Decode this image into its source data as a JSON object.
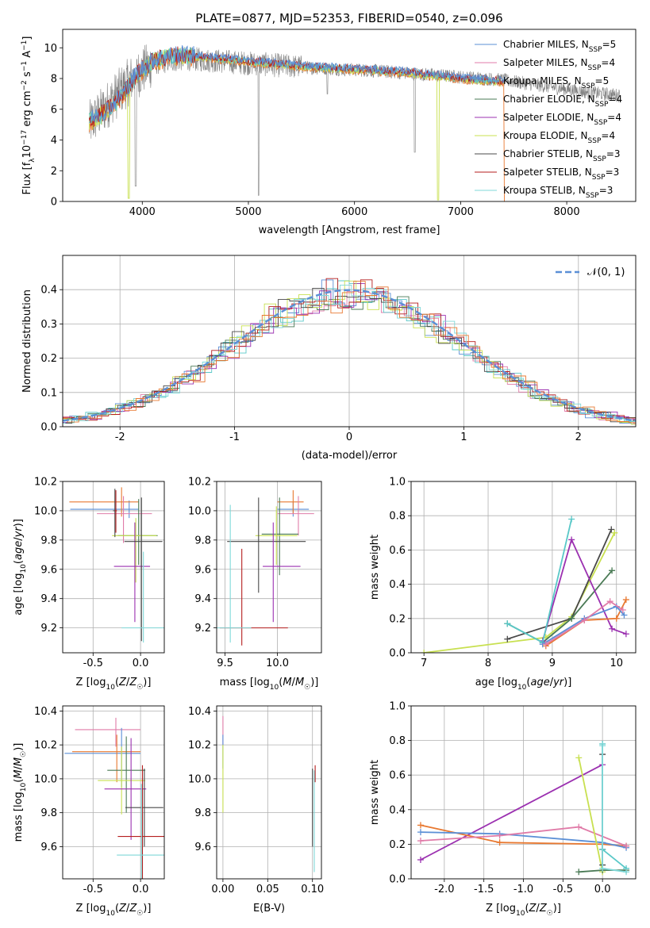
{
  "figure": {
    "title": "PLATE=0877, MJD=52353, FIBERID=0540, z=0.096"
  },
  "colors": {
    "Chabrier MILES": "#5b8fd6",
    "Salpeter MILES": "#e07ba8",
    "Kroupa MILES": "#5ac8c8",
    "Chabrier ELODIE": "#4a7a55",
    "Salpeter ELODIE": "#9b30b0",
    "Kroupa ELODIE": "#c8e050",
    "Chabrier STELIB": "#484848",
    "Salpeter STELIB": "#b51e1e",
    "Kroupa STELIB": "#7fd8d8",
    "orange": "#e87830",
    "gray_spectrum": "#808080",
    "normal_curve": "#5b8fd6"
  },
  "chart_data": [
    {
      "id": "spectrum",
      "type": "line",
      "xlabel": "wavelength [Angstrom, rest frame]",
      "ylabel": "Flux [f_λ10^-17 erg cm^-2 s^-1 A^-1]",
      "xlim": [
        3250,
        8650
      ],
      "ylim": [
        0,
        11.2
      ],
      "xticks": [
        4000,
        5000,
        6000,
        7000,
        8000
      ],
      "yticks": [
        0,
        2,
        4,
        6,
        8,
        10
      ],
      "grid": false,
      "legend_position": "upper-right",
      "legend": [
        {
          "label": "Chabrier MILES, N",
          "sub": "SSP",
          "suffix": "=5",
          "color_key": "Chabrier MILES"
        },
        {
          "label": "Salpeter MILES, N",
          "sub": "SSP",
          "suffix": "=4",
          "color_key": "Salpeter MILES"
        },
        {
          "label": "Kroupa MILES, N",
          "sub": "SSP",
          "suffix": "=5",
          "color_key": "Kroupa MILES"
        },
        {
          "label": "Chabrier ELODIE, N",
          "sub": "SSP",
          "suffix": "=4",
          "color_key": "Chabrier ELODIE"
        },
        {
          "label": "Salpeter ELODIE, N",
          "sub": "SSP",
          "suffix": "=4",
          "color_key": "Salpeter ELODIE"
        },
        {
          "label": "Kroupa ELODIE, N",
          "sub": "SSP",
          "suffix": "=4",
          "color_key": "Kroupa ELODIE"
        },
        {
          "label": "Chabrier STELIB, N",
          "sub": "SSP",
          "suffix": "=3",
          "color_key": "Chabrier STELIB"
        },
        {
          "label": "Salpeter STELIB, N",
          "sub": "SSP",
          "suffix": "=3",
          "color_key": "Salpeter STELIB"
        },
        {
          "label": "Kroupa STELIB, N",
          "sub": "SSP",
          "suffix": "=3",
          "color_key": "Kroupa STELIB"
        }
      ],
      "model_continuum": [
        [
          3500,
          5.2
        ],
        [
          3650,
          5.8
        ],
        [
          3800,
          6.8
        ],
        [
          3950,
          8.3
        ],
        [
          4100,
          9.1
        ],
        [
          4300,
          9.5
        ],
        [
          4600,
          9.4
        ],
        [
          5000,
          9.1
        ],
        [
          5500,
          8.8
        ],
        [
          6000,
          8.6
        ],
        [
          6500,
          8.4
        ],
        [
          7000,
          8.0
        ],
        [
          7400,
          7.8
        ]
      ],
      "observed_continuum": [
        [
          3500,
          5.0
        ],
        [
          3700,
          6.5
        ],
        [
          3900,
          8.0
        ],
        [
          4100,
          9.0
        ],
        [
          4400,
          9.3
        ],
        [
          5000,
          9.0
        ],
        [
          5600,
          8.7
        ],
        [
          6200,
          8.5
        ],
        [
          6800,
          8.2
        ],
        [
          7400,
          7.9
        ],
        [
          7800,
          7.5
        ],
        [
          8200,
          7.1
        ],
        [
          8500,
          6.9
        ]
      ]
    },
    {
      "id": "residuals",
      "type": "histogram",
      "xlabel": "(data-model)/error",
      "ylabel": "Normed distribution",
      "xlim": [
        -2.5,
        2.5
      ],
      "ylim": [
        0,
        0.5
      ],
      "xticks": [
        -2,
        -1,
        0,
        1,
        2
      ],
      "yticks": [
        0.0,
        0.1,
        0.2,
        0.3,
        0.4
      ],
      "grid": true,
      "legend_position": "upper-right",
      "legend": [
        {
          "label": "𝒩(0, 1)",
          "color_key": "normal_curve",
          "style": "dashed"
        }
      ],
      "bin_width": 0.1,
      "curve": "N(0,1)"
    },
    {
      "id": "age_vs_Z",
      "type": "errorbar",
      "xlabel": "Z [log10(Z/Z☉)]",
      "ylabel": "age  [log10(age/yr)]",
      "xlim": [
        -0.82,
        0.25
      ],
      "ylim": [
        9.03,
        10.2
      ],
      "xticks": [
        -0.5,
        0.0
      ],
      "yticks": [
        9.2,
        9.4,
        9.6,
        9.8,
        10.0,
        10.2
      ],
      "grid": true,
      "points": [
        {
          "series": "Chabrier MILES",
          "x": -0.12,
          "xerr": [
            0.62,
            0.1
          ],
          "y": 10.01,
          "yerr": [
            0.06,
            0.06
          ]
        },
        {
          "series": "orange",
          "x": -0.2,
          "xerr": [
            0.55,
            0.18
          ],
          "y": 10.06,
          "yerr": [
            0.1,
            0.1
          ]
        },
        {
          "series": "Salpeter MILES",
          "x": -0.18,
          "xerr": [
            0.28,
            0.3
          ],
          "y": 9.98,
          "yerr": [
            0.2,
            0.12
          ]
        },
        {
          "series": "Chabrier ELODIE",
          "x": -0.02,
          "xerr": [
            0.22,
            0.2
          ],
          "y": 9.83,
          "yerr": [
            0.2,
            0.25
          ]
        },
        {
          "series": "Kroupa ELODIE",
          "x": -0.05,
          "xerr": [
            0.25,
            0.22
          ],
          "y": 9.83,
          "yerr": [
            0.32,
            0.12
          ]
        },
        {
          "series": "Salpeter ELODIE",
          "x": -0.06,
          "xerr": [
            0.22,
            0.16
          ],
          "y": 9.62,
          "yerr": [
            0.38,
            0.3
          ]
        },
        {
          "series": "Chabrier STELIB",
          "x": 0.01,
          "xerr": [
            0.18,
            0.22
          ],
          "y": 9.79,
          "yerr": [
            0.68,
            0.3
          ]
        },
        {
          "series": "Kroupa STELIB",
          "x": 0.03,
          "xerr": [
            0.23,
            0.26
          ],
          "y": 9.2,
          "yerr": [
            0.1,
            0.52
          ]
        },
        {
          "series": "Chabrier STELIB",
          "x": -0.27,
          "xerr": [
            0.02,
            0.02
          ],
          "y": 10.0,
          "yerr": [
            0.18,
            0.15
          ]
        },
        {
          "series": "Salpeter STELIB",
          "x": -0.26,
          "xerr": [
            0.01,
            0.01
          ],
          "y": 10.0,
          "yerr": [
            0.15,
            0.14
          ]
        }
      ]
    },
    {
      "id": "age_vs_mass",
      "type": "errorbar",
      "xlabel": "mass [log10(M/M☉)]",
      "ylabel": "",
      "xlim": [
        9.42,
        10.42
      ],
      "ylim": [
        9.03,
        10.2
      ],
      "xticks": [
        9.5,
        10.0
      ],
      "yticks": [
        9.2,
        9.4,
        9.6,
        9.8,
        10.0,
        10.2
      ],
      "grid": true,
      "points": [
        {
          "series": "Chabrier MILES",
          "x": 10.15,
          "xerr": [
            0.15,
            0.15
          ],
          "y": 10.01,
          "yerr": [
            0.05,
            0.05
          ]
        },
        {
          "series": "orange",
          "x": 10.15,
          "xerr": [
            0.15,
            0.1
          ],
          "y": 10.06,
          "yerr": [
            0.08,
            0.08
          ]
        },
        {
          "series": "Salpeter MILES",
          "x": 10.2,
          "xerr": [
            0.2,
            0.15
          ],
          "y": 9.98,
          "yerr": [
            0.15,
            0.12
          ]
        },
        {
          "series": "Chabrier ELODIE",
          "x": 10.02,
          "xerr": [
            0.17,
            0.18
          ],
          "y": 9.84,
          "yerr": [
            0.28,
            0.25
          ]
        },
        {
          "series": "Kroupa ELODIE",
          "x": 9.99,
          "xerr": [
            0.2,
            0.2
          ],
          "y": 9.83,
          "yerr": [
            0.2,
            0.2
          ]
        },
        {
          "series": "Chabrier STELIB",
          "x": 9.82,
          "xerr": [
            0.3,
            0.45
          ],
          "y": 9.79,
          "yerr": [
            0.35,
            0.3
          ]
        },
        {
          "series": "Salpeter ELODIE",
          "x": 9.96,
          "xerr": [
            0.1,
            0.26
          ],
          "y": 9.62,
          "yerr": [
            0.38,
            0.3
          ]
        },
        {
          "series": "Salpeter STELIB",
          "x": 9.66,
          "xerr": [
            0.21,
            0.44
          ],
          "y": 9.2,
          "yerr": [
            0.12,
            0.54
          ]
        },
        {
          "series": "Kroupa STELIB",
          "x": 9.55,
          "xerr": [
            0.2,
            0.2
          ],
          "y": 9.2,
          "yerr": [
            0.1,
            0.84
          ]
        }
      ]
    },
    {
      "id": "massweight_vs_age",
      "type": "line",
      "xlabel": "age  [log10(age/yr)]",
      "ylabel": "mass weight",
      "xlim": [
        6.8,
        10.3
      ],
      "ylim": [
        0,
        1
      ],
      "xticks": [
        7,
        8,
        9,
        10
      ],
      "yticks": [
        0.0,
        0.2,
        0.4,
        0.6,
        0.8,
        1.0
      ],
      "grid": true,
      "series": [
        {
          "series": "Kroupa ELODIE",
          "x": [
            7.0,
            8.9,
            9.3,
            9.97
          ],
          "y": [
            0.0,
            0.09,
            0.21,
            0.7
          ]
        },
        {
          "series": "Chabrier STELIB",
          "x": [
            8.3,
            9.3,
            9.92
          ],
          "y": [
            0.08,
            0.2,
            0.72
          ]
        },
        {
          "series": "Chabrier ELODIE",
          "x": [
            8.3,
            8.85,
            9.3,
            9.93
          ],
          "y": [
            0.17,
            0.06,
            0.2,
            0.48
          ]
        },
        {
          "series": "Salpeter ELODIE",
          "x": [
            8.85,
            9.3,
            9.93,
            10.15
          ],
          "y": [
            0.07,
            0.66,
            0.14,
            0.11
          ]
        },
        {
          "series": "Kroupa MILES",
          "x": [
            8.3,
            8.85,
            9.3
          ],
          "y": [
            0.17,
            0.06,
            0.78
          ]
        },
        {
          "series": "orange",
          "x": [
            8.9,
            9.5,
            10.0,
            10.15
          ],
          "y": [
            0.04,
            0.19,
            0.2,
            0.31
          ]
        },
        {
          "series": "Chabrier MILES",
          "x": [
            8.85,
            9.5,
            10.0,
            10.12
          ],
          "y": [
            0.05,
            0.2,
            0.27,
            0.22
          ]
        },
        {
          "series": "Salpeter MILES",
          "x": [
            8.9,
            9.5,
            9.9,
            10.1
          ],
          "y": [
            0.05,
            0.19,
            0.3,
            0.25
          ]
        }
      ]
    },
    {
      "id": "mass_vs_Z",
      "type": "errorbar",
      "xlabel": "Z [log10(Z/Z☉)]",
      "ylabel": "mass [log10(M/M☉)]",
      "xlim": [
        -0.82,
        0.25
      ],
      "ylim": [
        9.41,
        10.43
      ],
      "xticks": [
        -0.5,
        0.0
      ],
      "yticks": [
        9.6,
        9.8,
        10.0,
        10.2,
        10.4
      ],
      "grid": true,
      "points": [
        {
          "series": "Salpeter MILES",
          "x": -0.26,
          "xerr": [
            0.43,
            0.26
          ],
          "y": 10.29,
          "yerr": [
            0.1,
            0.07
          ]
        },
        {
          "series": "Chabrier MILES",
          "x": -0.2,
          "xerr": [
            0.6,
            0.2
          ],
          "y": 10.15,
          "yerr": [
            0.2,
            0.15
          ]
        },
        {
          "series": "orange",
          "x": -0.25,
          "xerr": [
            0.47,
            0.25
          ],
          "y": 10.16,
          "yerr": [
            0.18,
            0.1
          ]
        },
        {
          "series": "Chabrier ELODIE",
          "x": -0.15,
          "xerr": [
            0.2,
            0.2
          ],
          "y": 10.05,
          "yerr": [
            0.25,
            0.2
          ]
        },
        {
          "series": "Kroupa ELODIE",
          "x": -0.2,
          "xerr": [
            0.25,
            0.25
          ],
          "y": 9.99,
          "yerr": [
            0.2,
            0.2
          ]
        },
        {
          "series": "Salpeter ELODIE",
          "x": -0.1,
          "xerr": [
            0.28,
            0.16
          ],
          "y": 9.94,
          "yerr": [
            0.3,
            0.3
          ]
        },
        {
          "series": "Chabrier STELIB",
          "x": 0.04,
          "xerr": [
            0.2,
            0.2
          ],
          "y": 9.83,
          "yerr": [
            0.23,
            0.23
          ]
        },
        {
          "series": "Salpeter STELIB",
          "x": 0.02,
          "xerr": [
            0.26,
            0.24
          ],
          "y": 9.66,
          "yerr": [
            0.42,
            0.42
          ]
        },
        {
          "series": "Kroupa STELIB",
          "x": 0.01,
          "xerr": [
            0.26,
            0.25
          ],
          "y": 9.55,
          "yerr": [
            0.42,
            0.42
          ]
        }
      ]
    },
    {
      "id": "mass_vs_EBV",
      "type": "errorbar",
      "xlabel": "E(B-V)",
      "ylabel": "",
      "xlim": [
        -0.007,
        0.11
      ],
      "ylim": [
        9.41,
        10.43
      ],
      "xticks": [
        0.0,
        0.05,
        0.1
      ],
      "xtick_labels": [
        "0.00",
        "0.05",
        "0.10"
      ],
      "yticks": [
        9.6,
        9.8,
        10.0,
        10.2,
        10.4
      ],
      "grid": true,
      "points": [
        {
          "series": "Salpeter MILES",
          "x": 0.0,
          "xerr": [
            0.0,
            0.0
          ],
          "y": 10.3,
          "yerr": [
            0.1,
            0.07
          ]
        },
        {
          "series": "Chabrier MILES",
          "x": 0.0,
          "xerr": [
            0.0,
            0.0
          ],
          "y": 10.16,
          "yerr": [
            0.1,
            0.1
          ]
        },
        {
          "series": "Kroupa ELODIE",
          "x": 0.0,
          "xerr": [
            0.0,
            0.0
          ],
          "y": 10.0,
          "yerr": [
            0.2,
            0.2
          ]
        },
        {
          "series": "Chabrier STELIB",
          "x": 0.1,
          "xerr": [
            0.0,
            0.0
          ],
          "y": 9.83,
          "yerr": [
            0.23,
            0.23
          ]
        },
        {
          "series": "Salpeter STELIB",
          "x": 0.103,
          "xerr": [
            0.0,
            0.0
          ],
          "y": 10.03,
          "yerr": [
            0.05,
            0.05
          ]
        },
        {
          "series": "Kroupa STELIB",
          "x": 0.102,
          "xerr": [
            0.0,
            0.0
          ],
          "y": 9.75,
          "yerr": [
            0.3,
            0.3
          ]
        }
      ]
    },
    {
      "id": "massweight_vs_Z",
      "type": "line",
      "xlabel": "Z [log10(Z/Z☉)]",
      "ylabel": "mass weight",
      "xlim": [
        -2.42,
        0.42
      ],
      "ylim": [
        0,
        1
      ],
      "xticks": [
        -2.0,
        -1.5,
        -1.0,
        -0.5,
        0.0
      ],
      "yticks": [
        0.0,
        0.2,
        0.4,
        0.6,
        0.8,
        1.0
      ],
      "grid": true,
      "series": [
        {
          "series": "Salpeter ELODIE",
          "x": [
            -2.3,
            0.0
          ],
          "y": [
            0.11,
            0.66
          ]
        },
        {
          "series": "orange",
          "x": [
            -2.3,
            -1.3,
            0.0,
            0.3
          ],
          "y": [
            0.31,
            0.21,
            0.2,
            0.19
          ]
        },
        {
          "series": "Chabrier MILES",
          "x": [
            -2.3,
            -1.3,
            0.0,
            0.3
          ],
          "y": [
            0.27,
            0.26,
            0.21,
            0.18
          ]
        },
        {
          "series": "Salpeter MILES",
          "x": [
            -2.3,
            -1.3,
            -0.3,
            0.3
          ],
          "y": [
            0.22,
            0.25,
            0.3,
            0.19
          ]
        },
        {
          "series": "Kroupa ELODIE",
          "x": [
            -0.3,
            0.0
          ],
          "y": [
            0.7,
            0.04
          ]
        },
        {
          "series": "Chabrier ELODIE",
          "x": [
            -0.3,
            0.0,
            0.3
          ],
          "y": [
            0.04,
            0.05,
            0.05
          ]
        },
        {
          "series": "Chabrier STELIB",
          "x": [
            0.0,
            0.0,
            0.0
          ],
          "y": [
            0.08,
            0.17,
            0.72
          ]
        },
        {
          "series": "Kroupa MILES",
          "x": [
            0.0,
            0.0,
            0.3
          ],
          "y": [
            0.78,
            0.17,
            0.06
          ]
        },
        {
          "series": "Kroupa STELIB",
          "x": [
            0.0,
            0.0,
            0.3
          ],
          "y": [
            0.77,
            0.06,
            0.04
          ]
        }
      ]
    }
  ]
}
